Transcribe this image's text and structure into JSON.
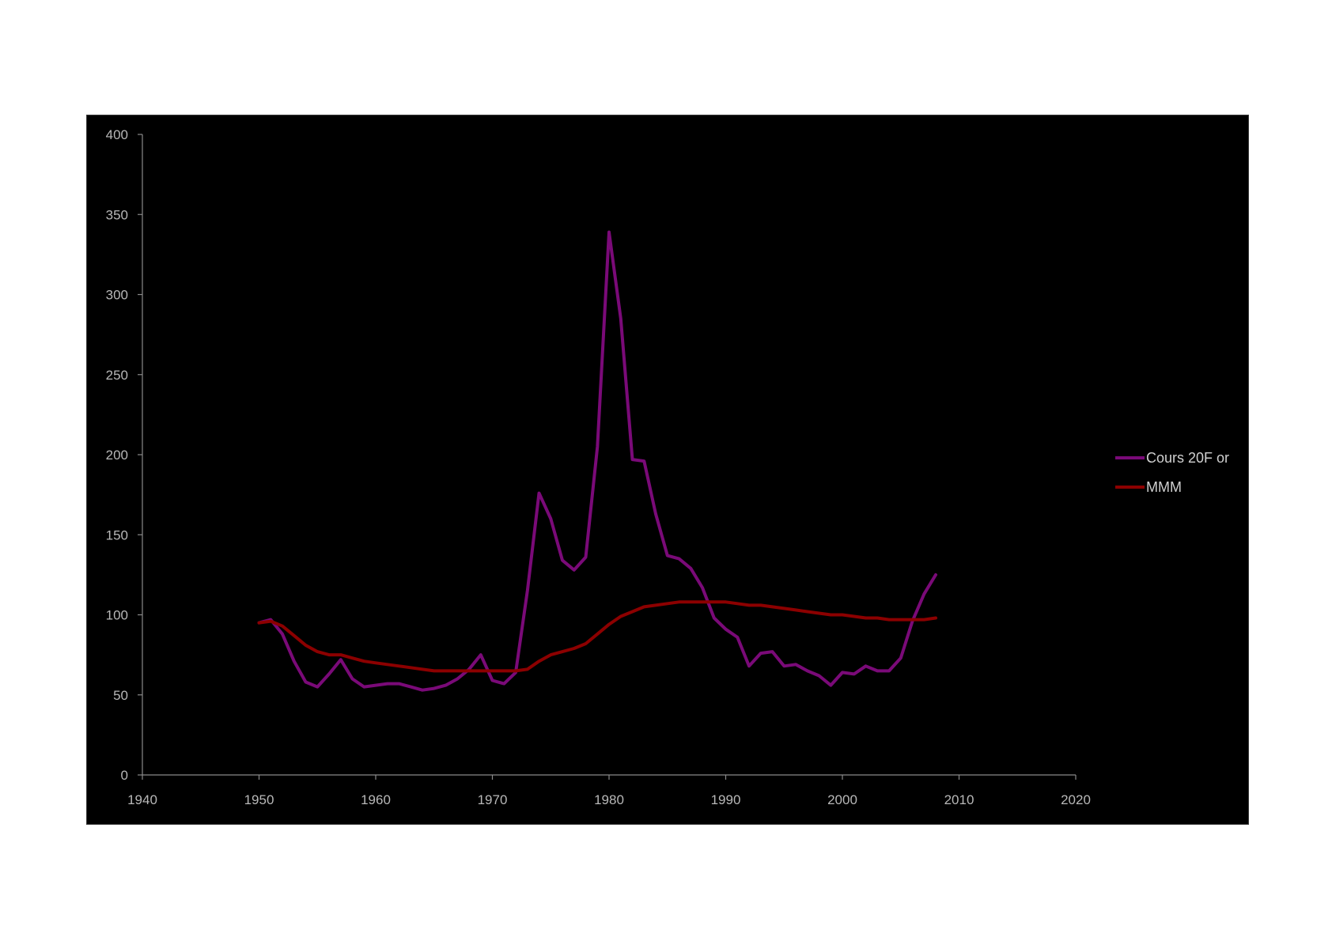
{
  "chart_data": {
    "type": "line",
    "title": "",
    "xlabel": "",
    "ylabel": "",
    "xlim": [
      1940,
      2020
    ],
    "ylim": [
      0,
      400
    ],
    "x_ticks": [
      1940,
      1950,
      1960,
      1970,
      1980,
      1990,
      2000,
      2010,
      2020
    ],
    "y_ticks": [
      0,
      50,
      100,
      150,
      200,
      250,
      300,
      350,
      400
    ],
    "grid": false,
    "legend_position": "right",
    "background": "#000000",
    "series": [
      {
        "name": "Cours 20F or",
        "color": "#7a0a78",
        "x": [
          1950,
          1951,
          1952,
          1953,
          1954,
          1955,
          1956,
          1957,
          1958,
          1959,
          1960,
          1961,
          1962,
          1963,
          1964,
          1965,
          1966,
          1967,
          1968,
          1969,
          1970,
          1971,
          1972,
          1973,
          1974,
          1975,
          1976,
          1977,
          1978,
          1979,
          1980,
          1981,
          1982,
          1983,
          1984,
          1985,
          1986,
          1987,
          1988,
          1989,
          1990,
          1991,
          1992,
          1993,
          1994,
          1995,
          1996,
          1997,
          1998,
          1999,
          2000,
          2001,
          2002,
          2003,
          2004,
          2005,
          2006,
          2007,
          2008
        ],
        "y": [
          95,
          97,
          88,
          71,
          58,
          55,
          63,
          72,
          60,
          55,
          56,
          57,
          57,
          55,
          53,
          54,
          56,
          60,
          66,
          75,
          59,
          57,
          64,
          115,
          176,
          160,
          134,
          128,
          136,
          205,
          339,
          285,
          197,
          196,
          163,
          137,
          135,
          129,
          117,
          98,
          91,
          86,
          68,
          76,
          77,
          68,
          69,
          65,
          62,
          56,
          64,
          63,
          68,
          65,
          65,
          73,
          96,
          113,
          125
        ]
      },
      {
        "name": "MMM",
        "color": "#8c0000",
        "x": [
          1950,
          1951,
          1952,
          1953,
          1954,
          1955,
          1956,
          1957,
          1958,
          1959,
          1960,
          1961,
          1962,
          1963,
          1964,
          1965,
          1966,
          1967,
          1968,
          1969,
          1970,
          1971,
          1972,
          1973,
          1974,
          1975,
          1976,
          1977,
          1978,
          1979,
          1980,
          1981,
          1982,
          1983,
          1984,
          1985,
          1986,
          1987,
          1988,
          1989,
          1990,
          1991,
          1992,
          1993,
          1994,
          1995,
          1996,
          1997,
          1998,
          1999,
          2000,
          2001,
          2002,
          2003,
          2004,
          2005,
          2006,
          2007,
          2008
        ],
        "y": [
          95,
          96,
          93,
          87,
          81,
          77,
          75,
          75,
          73,
          71,
          70,
          69,
          68,
          67,
          66,
          65,
          65,
          65,
          65,
          65,
          65,
          65,
          65,
          66,
          71,
          75,
          77,
          79,
          82,
          88,
          94,
          99,
          102,
          105,
          106,
          107,
          108,
          108,
          108,
          108,
          108,
          107,
          106,
          106,
          105,
          104,
          103,
          102,
          101,
          100,
          100,
          99,
          98,
          98,
          97,
          97,
          97,
          97,
          98
        ]
      }
    ]
  }
}
